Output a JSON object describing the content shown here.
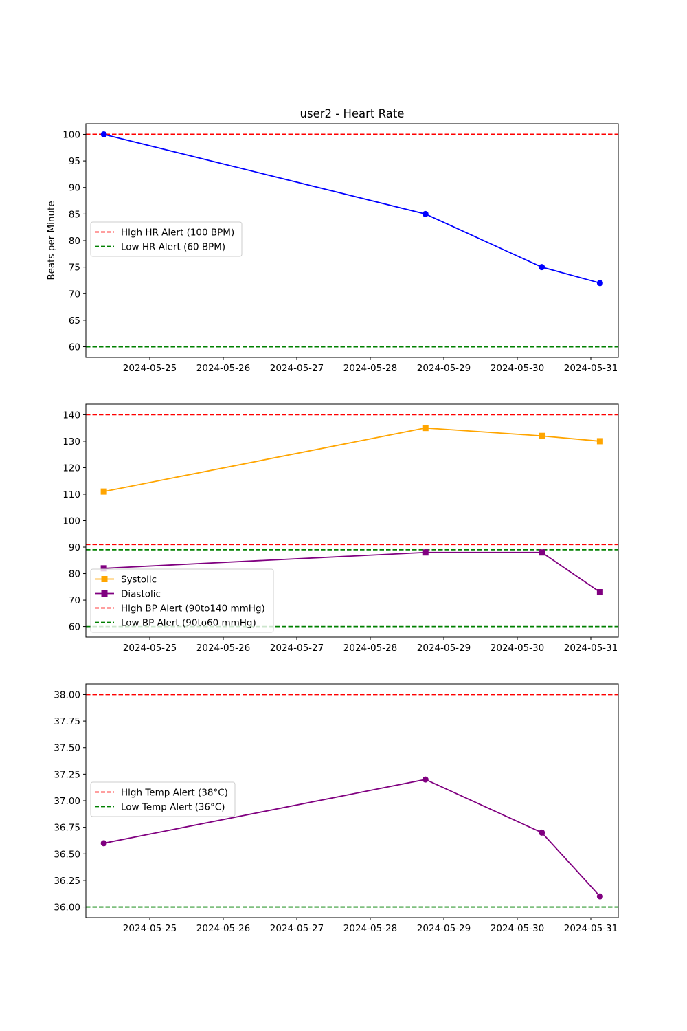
{
  "chart_data": [
    {
      "type": "line",
      "title": "user2 - Heart Rate",
      "xlabel": "",
      "ylabel": "Beats per Minute",
      "x_ticks": [
        "2024-05-25",
        "2024-05-26",
        "2024-05-27",
        "2024-05-28",
        "2024-05-29",
        "2024-05-30",
        "2024-05-31"
      ],
      "x": [
        "2024-05-24 09:00",
        "2024-05-28 18:00",
        "2024-05-30 08:00",
        "2024-05-31 03:00"
      ],
      "ylim": [
        58,
        102
      ],
      "y_ticks": [
        60,
        65,
        70,
        75,
        80,
        85,
        90,
        95,
        100
      ],
      "y_tick_decimals": 0,
      "series": [
        {
          "values": [
            100,
            85,
            75,
            72
          ],
          "color": "#0000ff",
          "marker": "circle"
        }
      ],
      "alert_lines": [
        {
          "name": "High HR Alert (100 BPM)",
          "value": 100,
          "color": "#ff0000"
        },
        {
          "name": "Low HR Alert (60 BPM)",
          "value": 60,
          "color": "#008000"
        }
      ],
      "legend": "center-left",
      "grid": false
    },
    {
      "type": "line",
      "title": "",
      "xlabel": "",
      "ylabel": "",
      "x_ticks": [
        "2024-05-25",
        "2024-05-26",
        "2024-05-27",
        "2024-05-28",
        "2024-05-29",
        "2024-05-30",
        "2024-05-31"
      ],
      "x": [
        "2024-05-24 09:00",
        "2024-05-28 18:00",
        "2024-05-30 08:00",
        "2024-05-31 03:00"
      ],
      "ylim": [
        56,
        144
      ],
      "y_ticks": [
        60,
        70,
        80,
        90,
        100,
        110,
        120,
        130,
        140
      ],
      "y_tick_decimals": 0,
      "series": [
        {
          "name": "Systolic",
          "values": [
            111,
            135,
            132,
            130
          ],
          "color": "#ffa500",
          "marker": "square"
        },
        {
          "name": "Diastolic",
          "values": [
            82,
            88,
            88,
            73
          ],
          "color": "#800080",
          "marker": "square"
        }
      ],
      "alert_lines": [
        {
          "name": "High BP Alert (90to140 mmHg)",
          "value": 140,
          "color": "#ff0000"
        },
        {
          "name": "",
          "value": 91,
          "color": "#ff0000"
        },
        {
          "name": "",
          "value": 89,
          "color": "#008000"
        },
        {
          "name": "Low BP Alert (90to60 mmHg)",
          "value": 60,
          "color": "#008000"
        }
      ],
      "legend": "lower-left",
      "grid": false
    },
    {
      "type": "line",
      "title": "",
      "xlabel": "",
      "ylabel": "",
      "x_ticks": [
        "2024-05-25",
        "2024-05-26",
        "2024-05-27",
        "2024-05-28",
        "2024-05-29",
        "2024-05-30",
        "2024-05-31"
      ],
      "x": [
        "2024-05-24 09:00",
        "2024-05-28 18:00",
        "2024-05-30 08:00",
        "2024-05-31 03:00"
      ],
      "ylim": [
        35.9,
        38.1
      ],
      "y_ticks": [
        36.0,
        36.25,
        36.5,
        36.75,
        37.0,
        37.25,
        37.5,
        37.75,
        38.0
      ],
      "y_tick_decimals": 2,
      "series": [
        {
          "values": [
            36.6,
            37.2,
            36.7,
            36.1
          ],
          "color": "#800080",
          "marker": "circle"
        }
      ],
      "alert_lines": [
        {
          "name": "High Temp Alert (38°C)",
          "value": 38,
          "color": "#ff0000"
        },
        {
          "name": "Low Temp Alert (36°C)",
          "value": 36,
          "color": "#008000"
        }
      ],
      "legend": "center-left",
      "grid": false
    }
  ]
}
